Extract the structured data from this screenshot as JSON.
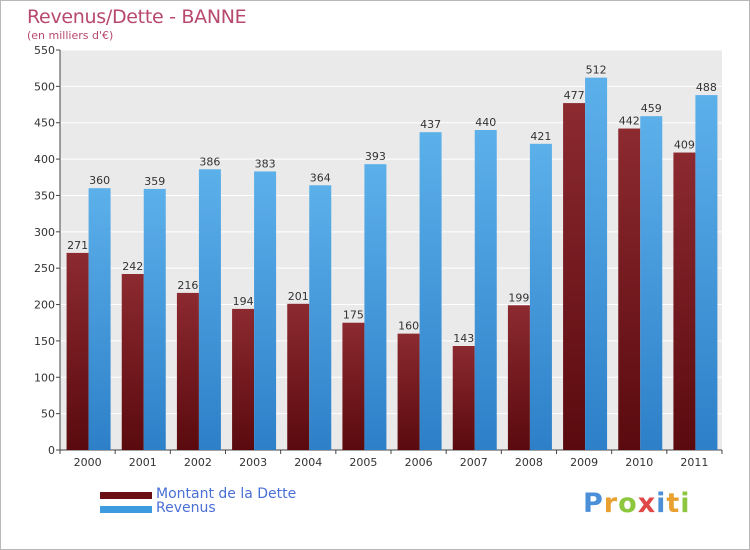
{
  "header": {
    "title": "Revenus/Dette - BANNE",
    "subtitle": "(en milliers d'€)"
  },
  "chart_data": {
    "type": "bar",
    "categories": [
      "2000",
      "2001",
      "2002",
      "2003",
      "2004",
      "2005",
      "2006",
      "2007",
      "2008",
      "2009",
      "2010",
      "2011"
    ],
    "series": [
      {
        "name": "Montant de la Dette",
        "values": [
          271,
          242,
          216,
          194,
          201,
          175,
          160,
          143,
          199,
          477,
          442,
          409
        ],
        "color": "#7a1f24"
      },
      {
        "name": "Revenus",
        "values": [
          360,
          359,
          386,
          383,
          364,
          393,
          437,
          440,
          421,
          512,
          459,
          488
        ],
        "color": "#4da6e6"
      }
    ],
    "ylim": [
      0,
      550
    ],
    "yticks": [
      0,
      50,
      100,
      150,
      200,
      250,
      300,
      350,
      400,
      450,
      500,
      550
    ],
    "grid": true,
    "legend": "bottom-left"
  },
  "legend": {
    "items": [
      {
        "label": "Montant de la Dette",
        "color": "#6b0f14"
      },
      {
        "label": "Revenus",
        "color": "#3f9be0"
      }
    ]
  },
  "logo": {
    "letters": [
      {
        "ch": "P",
        "color": "#4a8fd8"
      },
      {
        "ch": "r",
        "color": "#e8a030"
      },
      {
        "ch": "o",
        "color": "#8dc63f"
      },
      {
        "ch": "x",
        "color": "#e04848"
      },
      {
        "ch": "i",
        "color": "#4a8fd8"
      },
      {
        "ch": "t",
        "color": "#e8a030"
      },
      {
        "ch": "i",
        "color": "#8dc63f"
      }
    ]
  }
}
